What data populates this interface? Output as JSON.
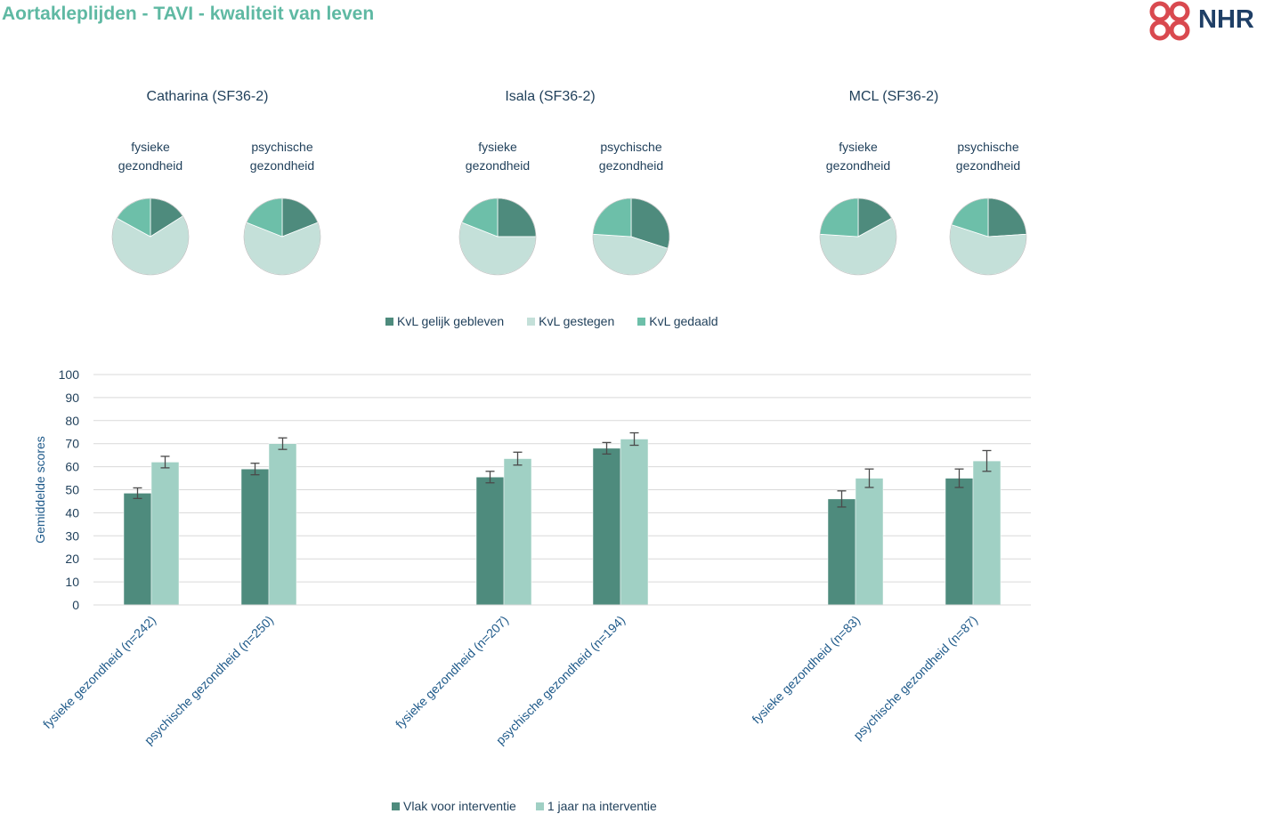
{
  "page": {
    "title": "Aortakleplijden - TAVI - kwaliteit van leven",
    "logo_text": "NHR",
    "colors": {
      "title": "#5fb9a3",
      "dark": "#4e8b7d",
      "light": "#c4e0d9",
      "medium": "#6dbfa9",
      "bar_light": "#a0d0c4"
    }
  },
  "chart_data": [
    {
      "type": "pie",
      "group_titles": [
        "Catharina (SF36-2)",
        "Isala (SF36-2)",
        "MCL (SF36-2)"
      ],
      "pie_labels": [
        [
          "fysieke",
          "gezondheid"
        ],
        [
          "psychische",
          "gezondheid"
        ]
      ],
      "legend": [
        "KvL gelijk gebleven",
        "KvL gestegen",
        "KvL gedaald"
      ],
      "series_colors": [
        "#4e8b7d",
        "#c4e0d9",
        "#6dbfa9"
      ],
      "pies": [
        {
          "group": 0,
          "measure": 0,
          "values": [
            16,
            67,
            17
          ]
        },
        {
          "group": 0,
          "measure": 1,
          "values": [
            19,
            62,
            19
          ]
        },
        {
          "group": 1,
          "measure": 0,
          "values": [
            25,
            56,
            19
          ]
        },
        {
          "group": 1,
          "measure": 1,
          "values": [
            30,
            46,
            24
          ]
        },
        {
          "group": 2,
          "measure": 0,
          "values": [
            17,
            59,
            24
          ]
        },
        {
          "group": 2,
          "measure": 1,
          "values": [
            24,
            56,
            20
          ]
        }
      ]
    },
    {
      "type": "bar",
      "categories": [
        "fysieke gezondheid (n=242)",
        "psychische gezondheid (n=250)",
        "fysieke gezondheid (n=207)",
        "psychische gezondheid (n=194)",
        "fysieke gezondheid (n=83)",
        "psychische gezondheid (n=87)"
      ],
      "ylabel": "Gemiddelde scores",
      "ylim": [
        0,
        100
      ],
      "yticks": [
        0,
        10,
        20,
        30,
        40,
        50,
        60,
        70,
        80,
        90,
        100
      ],
      "grid": true,
      "legend_position": "bottom",
      "series": [
        {
          "name": "Vlak voor interventie",
          "color": "#4e8b7d",
          "values": [
            48.5,
            59,
            55.5,
            68,
            46,
            55
          ],
          "errors": [
            2.3,
            2.5,
            2.5,
            2.5,
            3.5,
            4
          ]
        },
        {
          "name": "1 jaar na interventie",
          "color": "#a0d0c4",
          "values": [
            62,
            70,
            63.5,
            72,
            55,
            62.5
          ],
          "errors": [
            2.5,
            2.5,
            2.8,
            2.7,
            4,
            4.5
          ]
        }
      ]
    }
  ]
}
